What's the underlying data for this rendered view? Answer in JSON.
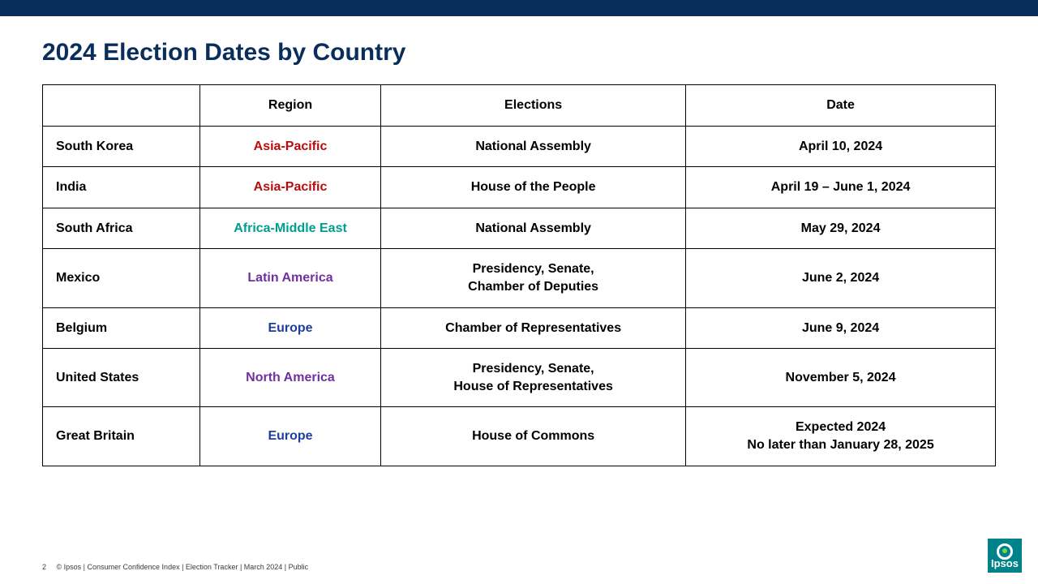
{
  "title": "2024 Election Dates by Country",
  "table": {
    "columns": [
      "",
      "Region",
      "Elections",
      "Date"
    ],
    "rows": [
      {
        "country": "South Korea",
        "region": "Asia-Pacific",
        "region_color": "#b70d0d",
        "elections": "National Assembly",
        "date": "April 10, 2024"
      },
      {
        "country": "India",
        "region": "Asia-Pacific",
        "region_color": "#b70d0d",
        "elections": "House of the People",
        "date": "April 19 – June 1, 2024"
      },
      {
        "country": "South Africa",
        "region": "Africa-Middle East",
        "region_color": "#009e8e",
        "elections": "National Assembly",
        "date": "May 29, 2024"
      },
      {
        "country": "Mexico",
        "region": "Latin America",
        "region_color": "#7030a0",
        "elections": "Presidency, Senate,\nChamber of Deputies",
        "date": "June 2, 2024"
      },
      {
        "country": "Belgium",
        "region": "Europe",
        "region_color": "#1f3e9e",
        "elections": "Chamber of Representatives",
        "date": "June 9, 2024"
      },
      {
        "country": "United States",
        "region": "North America",
        "region_color": "#7030a0",
        "elections": "Presidency, Senate,\nHouse of Representatives",
        "date": "November 5, 2024"
      },
      {
        "country": "Great Britain",
        "region": "Europe",
        "region_color": "#1f3e9e",
        "elections": "House of Commons",
        "date": "Expected 2024\nNo later than January 28, 2025"
      }
    ]
  },
  "footer": {
    "page": "2",
    "text": "© Ipsos | Consumer Confidence Index | Election Tracker | March 2024 | Public"
  },
  "logo_text": "Ipsos"
}
